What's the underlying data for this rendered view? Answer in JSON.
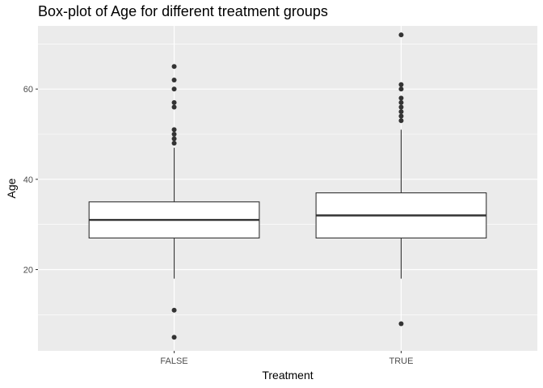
{
  "chart_data": {
    "type": "box",
    "title": "Box-plot of Age for different treatment groups",
    "xlabel": "Treatment",
    "ylabel": "Age",
    "categories": [
      "FALSE",
      "TRUE"
    ],
    "ylim": [
      2,
      74
    ],
    "yticks": [
      20,
      40,
      60
    ],
    "grid": true,
    "legend": "none",
    "colors": {
      "panel_background": "#ebebeb",
      "grid_major": "#ffffff",
      "grid_minor": "#f5f5f5",
      "box_fill": "#ffffff",
      "box_stroke": "#333333",
      "outlier": "#333333",
      "tick_text": "#4d4d4d"
    },
    "boxes": [
      {
        "category": "FALSE",
        "whisker_low": 18,
        "q1": 27,
        "median": 31,
        "q3": 35,
        "whisker_high": 47,
        "outliers": [
          5,
          11,
          48,
          49,
          50,
          51,
          56,
          57,
          60,
          62,
          65
        ]
      },
      {
        "category": "TRUE",
        "whisker_low": 18,
        "q1": 27,
        "median": 32,
        "q3": 37,
        "whisker_high": 51,
        "outliers": [
          8,
          53,
          54,
          55,
          56,
          57,
          58,
          60,
          61,
          72
        ]
      }
    ]
  }
}
